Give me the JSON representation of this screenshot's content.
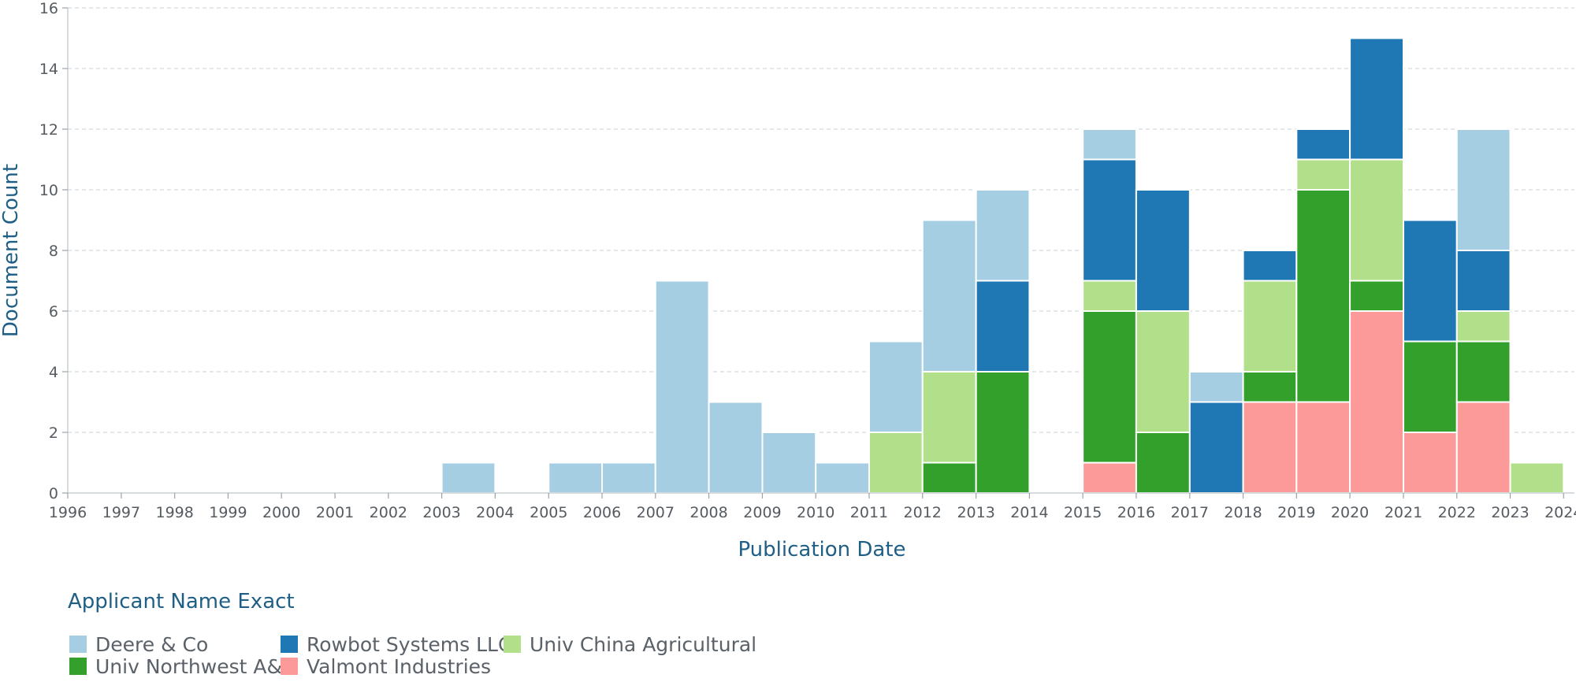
{
  "chart_data": {
    "type": "bar",
    "stacked": true,
    "xlabel": "Publication Date",
    "ylabel": "Document Count",
    "ylim": [
      0,
      16
    ],
    "y_ticks": [
      0,
      2,
      4,
      6,
      8,
      10,
      12,
      14,
      16
    ],
    "grid": "horizontal dashed",
    "x_ticks": [
      "1996",
      "1997",
      "1998",
      "1999",
      "2000",
      "2001",
      "2002",
      "2003",
      "2004",
      "2005",
      "2006",
      "2007",
      "2008",
      "2009",
      "2010",
      "2011",
      "2012",
      "2013",
      "2014",
      "2015",
      "2016",
      "2017",
      "2018",
      "2019",
      "2020",
      "2021",
      "2022",
      "2023",
      "2024"
    ],
    "categories": [
      "2003",
      "2005",
      "2006",
      "2007",
      "2008",
      "2009",
      "2010",
      "2011",
      "2012",
      "2013",
      "2015",
      "2016",
      "2017",
      "2018",
      "2019",
      "2020",
      "2021",
      "2022",
      "2023"
    ],
    "legend_title": "Applicant Name Exact",
    "legend_position": "bottom-left",
    "series": [
      {
        "name": "Valmont Industries",
        "color": "#fb9a99",
        "values": [
          0,
          0,
          0,
          0,
          0,
          0,
          0,
          0,
          0,
          0,
          1,
          0,
          0,
          3,
          3,
          6,
          2,
          3,
          0
        ]
      },
      {
        "name": "Univ Northwest A&f",
        "color": "#33a02c",
        "values": [
          0,
          0,
          0,
          0,
          0,
          0,
          0,
          0,
          1,
          4,
          5,
          2,
          0,
          1,
          7,
          1,
          3,
          2,
          0
        ]
      },
      {
        "name": "Univ China Agricultural",
        "color": "#b2df8a",
        "values": [
          0,
          0,
          0,
          0,
          0,
          0,
          0,
          2,
          3,
          0,
          1,
          4,
          0,
          3,
          1,
          4,
          0,
          1,
          1
        ]
      },
      {
        "name": "Rowbot Systems LLC",
        "color": "#1f78b4",
        "values": [
          0,
          0,
          0,
          0,
          0,
          0,
          0,
          0,
          0,
          3,
          4,
          4,
          3,
          1,
          1,
          4,
          4,
          2,
          0
        ]
      },
      {
        "name": "Deere & Co",
        "color": "#a6cee3",
        "values": [
          1,
          1,
          1,
          7,
          3,
          2,
          1,
          3,
          5,
          3,
          1,
          0,
          1,
          0,
          0,
          0,
          0,
          4,
          0
        ]
      }
    ],
    "legend_order": [
      "Deere & Co",
      "Rowbot Systems LLC",
      "Univ China Agricultural",
      "Univ Northwest A&f",
      "Valmont Industries"
    ]
  }
}
